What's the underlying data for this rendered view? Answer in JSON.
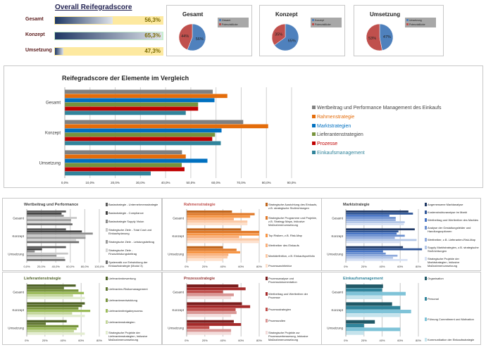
{
  "overall": {
    "title": "Overall Reifegradscore",
    "rows": [
      {
        "label": "Gesamt",
        "value": 56.3,
        "text": "56,3%",
        "bg": "#fde9a0"
      },
      {
        "label": "Konzept",
        "value": 65.3,
        "text": "65,3%",
        "bg": "#c6efce"
      },
      {
        "label": "Umsetzung",
        "value": 47.3,
        "text": "47,3%",
        "bg": "#fde9a0"
      }
    ]
  },
  "pies": [
    {
      "title": "Gesamt",
      "legend": [
        "Gesamt",
        "Potenziallücke"
      ],
      "values": [
        56,
        44
      ],
      "labels": [
        "56%",
        "44%"
      ]
    },
    {
      "title": "Konzept",
      "legend": [
        "Konzept",
        "Potenziallücke"
      ],
      "values": [
        65,
        35
      ],
      "labels": [
        "65%",
        "35%"
      ]
    },
    {
      "title": "Umsetzung",
      "legend": [
        "Umsetzung",
        "Potenziallücke"
      ],
      "values": [
        47,
        53
      ],
      "labels": [
        "47%",
        "53%"
      ]
    }
  ],
  "pie_colors": [
    "#4f81bd",
    "#c0504d"
  ],
  "chart_data": [
    {
      "type": "bar",
      "orientation": "horizontal",
      "title": "Reifegradscore der Elemente im Vergleich",
      "categories": [
        "Gesamt",
        "Konzept",
        "Umsetzung"
      ],
      "xlim": [
        0,
        90
      ],
      "tick_labels": [
        "0,0%",
        "10,0%",
        "20,0%",
        "30,0%",
        "40,0%",
        "50,0%",
        "60,0%",
        "70,0%",
        "80,0%",
        "90,0%"
      ],
      "grid": true,
      "legend": "right",
      "series": [
        {
          "name": "Wertbeitrag und Performance Management des Einkaufs",
          "color": "#808080",
          "text_color": "#404040",
          "values": [
            58.7,
            70.8,
            46.5
          ]
        },
        {
          "name": "Rahmenstrategie",
          "color": "#e46c0a",
          "text_color": "#e46c0a",
          "values": [
            64.5,
            80.7,
            48.0
          ]
        },
        {
          "name": "Marktstrategien",
          "color": "#0070c0",
          "text_color": "#0070c0",
          "values": [
            59.4,
            62.2,
            56.6
          ]
        },
        {
          "name": "Lieferantenstrategien",
          "color": "#77933c",
          "text_color": "#404040",
          "values": [
            52.9,
            59.6,
            46.4
          ]
        },
        {
          "name": "Prozesse",
          "color": "#c00000",
          "text_color": "#c00000",
          "values": [
            52.9,
            58.5,
            47.5
          ]
        },
        {
          "name": "Einkaufsmanagement",
          "color": "#31849b",
          "text_color": "#31849b",
          "values": [
            48.0,
            61.9,
            34.1
          ]
        }
      ]
    },
    {
      "type": "bar",
      "orientation": "horizontal",
      "title": "Wertbeitrag und Performance",
      "title_color": "#404040",
      "categories": [
        "Gesamt",
        "Konzept",
        "Umsetzung"
      ],
      "xlim": [
        0,
        100
      ],
      "tick_labels": [
        "0,0%",
        "20,0%",
        "40,0%",
        "60,0%",
        "80,0%",
        "100,0%"
      ],
      "grid": true,
      "legend": "right",
      "series": [
        {
          "name": "Basisstrategie - Unternehmensstrategie",
          "color": "#5a5a5a",
          "values": [
            54,
            54,
            54
          ]
        },
        {
          "name": "Basisstrategie - Compliance",
          "color": "#404040",
          "values": [
            48,
            76,
            21
          ]
        },
        {
          "name": "Basisstrategie Supply Vision",
          "color": "#8c8c8c",
          "values": [
            51,
            91,
            11
          ]
        },
        {
          "name": "Strategische Ziele - Total Cost und Einkaufsplanung",
          "color": "#c8c8c8",
          "values": [
            69,
            81,
            57
          ]
        },
        {
          "name": "Strategische Ziele - Leistungsbeitrag",
          "color": "#9a9a9a",
          "values": [
            61,
            81,
            41
          ]
        },
        {
          "name": "Strategische Ziele - Finanzleistungsbeitrag",
          "color": "#d4d4d4",
          "values": [
            61,
            68,
            52
          ]
        },
        {
          "name": "Systematik zur Entwicklung der Einkaufsstrategie (Modul 3)",
          "color": "#6e6e6e",
          "values": [
            63,
            72,
            53
          ]
        }
      ]
    },
    {
      "type": "bar",
      "orientation": "horizontal",
      "title": "Rahmenstrategie",
      "title_color": "#c0504d",
      "categories": [
        "Gesamt",
        "Konzept",
        "Umsetzung"
      ],
      "xlim": [
        0,
        80
      ],
      "tick_labels": [
        "0%",
        "20%",
        "40%",
        "60%",
        "80%"
      ],
      "grid": true,
      "legend": "right",
      "series": [
        {
          "name": "Strategische Ausrichtung des Einkaufs, z.B. strategische Stoßrichtungen",
          "color": "#c0651c",
          "values": [
            50,
            60,
            40
          ]
        },
        {
          "name": "Strategische Programme und Projekte, z.B. Strategy Maps, Inklusive Maßnahmenumsetzung",
          "color": "#e07a2a",
          "values": [
            75,
            80,
            55
          ]
        },
        {
          "name": "Top Risiken, z.B. Risk-Map",
          "color": "#f79646",
          "values": [
            70,
            80,
            59
          ]
        },
        {
          "name": "Werttreiber des Einkaufs",
          "color": "#f9b07c",
          "values": [
            52,
            58,
            46
          ]
        },
        {
          "name": "Marktdefinition, z.B. Einkaufsportfolio",
          "color": "#fbc9a5",
          "values": [
            67,
            80,
            45
          ]
        },
        {
          "name": "Prozessarchitektur",
          "color": "#fde0cc",
          "values": [
            67,
            80,
            40
          ]
        }
      ]
    },
    {
      "type": "bar",
      "orientation": "horizontal",
      "title": "Marktstrategie",
      "title_color": "#404040",
      "categories": [
        "Gesamt",
        "Konzept",
        "Umsetzung"
      ],
      "xlim": [
        0,
        80
      ],
      "tick_labels": [
        "0%",
        "20%",
        "40%",
        "60%",
        "80%"
      ],
      "grid": true,
      "legend": "right",
      "series": [
        {
          "name": "Angemessene Marktanalyse",
          "color": "#1f3864",
          "values": [
            69,
            76,
            63
          ]
        },
        {
          "name": "Kostenstrukturanalyse im Markt",
          "color": "#2e5597",
          "values": [
            74,
            58,
            84
          ]
        },
        {
          "name": "Wertbeitrag und Werttreiber des Marktes",
          "color": "#4472c4",
          "values": [
            48,
            56,
            41
          ]
        },
        {
          "name": "Analyse der Gestaltungsfelder und Handlungsoptionen",
          "color": "#6a8fd0",
          "values": [
            55,
            65,
            44
          ]
        },
        {
          "name": "Werttreiber, z.B. Lieferanten-Risk-Map",
          "color": "#8faadc",
          "values": [
            55,
            54,
            57
          ]
        },
        {
          "name": "Supply Marktstrategien, z.B. strategische Stoßrichtungen",
          "color": "#b4c7e7",
          "values": [
            65,
            78,
            52
          ]
        },
        {
          "name": "Strategische Projekte der Marktstrategien, Inklusive Maßnahmenumsetzung",
          "color": "#d6e0f3",
          "values": [
            64,
            60,
            68
          ]
        }
      ]
    },
    {
      "type": "bar",
      "orientation": "horizontal",
      "title": "Lieferantenstrategie",
      "title_color": "#4f6228",
      "categories": [
        "Gesamt",
        "Konzept",
        "Umsetzung"
      ],
      "xlim": [
        0,
        80
      ],
      "tick_labels": [
        "0%",
        "20%",
        "40%",
        "60%",
        "80%"
      ],
      "grid": true,
      "legend": "right",
      "series": [
        {
          "name": "Lieferantenbewertung",
          "color": "#4f6228",
          "values": [
            54,
            64,
            44
          ]
        },
        {
          "name": "Lieferanten-Risikomanagement",
          "color": "#5f7530",
          "values": [
            41,
            61,
            21
          ]
        },
        {
          "name": "Lieferantenentwicklung",
          "color": "#77933c",
          "values": [
            57,
            57,
            57
          ]
        },
        {
          "name": "Lieferantenfreigabeprozess",
          "color": "#9bbb59",
          "values": [
            63,
            70,
            55
          ]
        },
        {
          "name": "Lieferantenstrategien",
          "color": "#c3d69b",
          "values": [
            51,
            50,
            52
          ]
        },
        {
          "name": "Strategische Projekte der Lieferantenstrategien, Inklusive Maßnahmenumsetzung",
          "color": "#e2ecd0",
          "values": [
            64,
            64,
            64
          ]
        }
      ]
    },
    {
      "type": "bar",
      "orientation": "horizontal",
      "title": "Prozessstrategie",
      "title_color": "#943634",
      "categories": [
        "Gesamt",
        "Konzept",
        "Umsetzung"
      ],
      "xlim": [
        0,
        80
      ],
      "tick_labels": [
        "0%",
        "20%",
        "40%",
        "60%",
        "80%"
      ],
      "grid": true,
      "legend": "right",
      "series": [
        {
          "name": "Prozessanalyse und Prozessdokumentation",
          "color": "#7b1d1d",
          "values": [
            57,
            61,
            52
          ]
        },
        {
          "name": "Wertbeitrag und Werttreiber der Prozesse",
          "color": "#a52a2a",
          "values": [
            65,
            70,
            60
          ]
        },
        {
          "name": "Prozessstrategien",
          "color": "#c0504d",
          "values": [
            40,
            54,
            25
          ]
        },
        {
          "name": "Prozessrollen",
          "color": "#d99694",
          "values": [
            52,
            55,
            49
          ]
        },
        {
          "name": "Strategische Projekte zur Prozessverbesserung, Inklusive Maßnahmenumsetzung",
          "color": "#f2dcdb",
          "values": [
            49,
            49,
            49
          ]
        }
      ]
    },
    {
      "type": "bar",
      "orientation": "horizontal",
      "title": "Einkaufsmanagement",
      "title_color": "#31849b",
      "categories": [
        "Gesamt",
        "Konzept",
        "Umsetzung"
      ],
      "xlim": [
        0,
        80
      ],
      "tick_labels": [
        "0%",
        "20%",
        "40%",
        "60%",
        "80%"
      ],
      "grid": true,
      "legend": "right",
      "series": [
        {
          "name": "Organisation",
          "color": "#215967",
          "values": [
            41,
            51,
            32
          ]
        },
        {
          "name": "Personal",
          "color": "#31859c",
          "values": [
            40,
            60,
            20
          ]
        },
        {
          "name": "Führung Commitment und Motivation",
          "color": "#7fc3d8",
          "values": [
            66,
            72,
            60
          ]
        },
        {
          "name": "Kommunikation der Einkaufsstrategie",
          "color": "#c5e3ec",
          "values": [
            40,
            60,
            20
          ]
        }
      ]
    }
  ]
}
